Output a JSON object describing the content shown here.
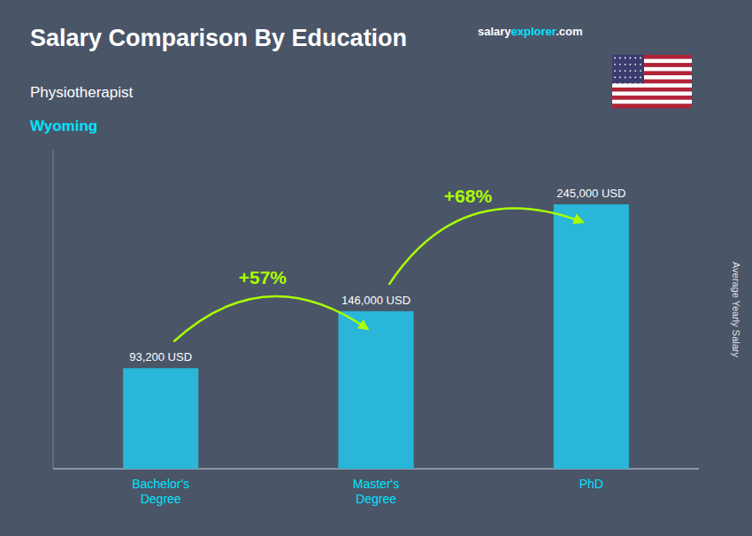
{
  "chart_data": {
    "type": "bar",
    "title": "Salary Comparison By Education",
    "subtitle": [
      "Physiotherapist",
      "Wyoming"
    ],
    "brand": [
      "salary",
      "explorer",
      ".com"
    ],
    "ylabel": "Average Yearly Salary",
    "categories": [
      "Bachelor's\nDegree",
      "Master's\nDegree",
      "PhD"
    ],
    "values": [
      93200,
      146000,
      245000
    ],
    "value_labels": [
      "93,200 USD",
      "146,000 USD",
      "245,000 USD"
    ],
    "data_labels": true,
    "color": "#29b6d8",
    "annotations": [
      "+57%",
      "+68%"
    ],
    "ylim": [
      0,
      295000
    ],
    "tick_labels": "x",
    "grid": false
  }
}
